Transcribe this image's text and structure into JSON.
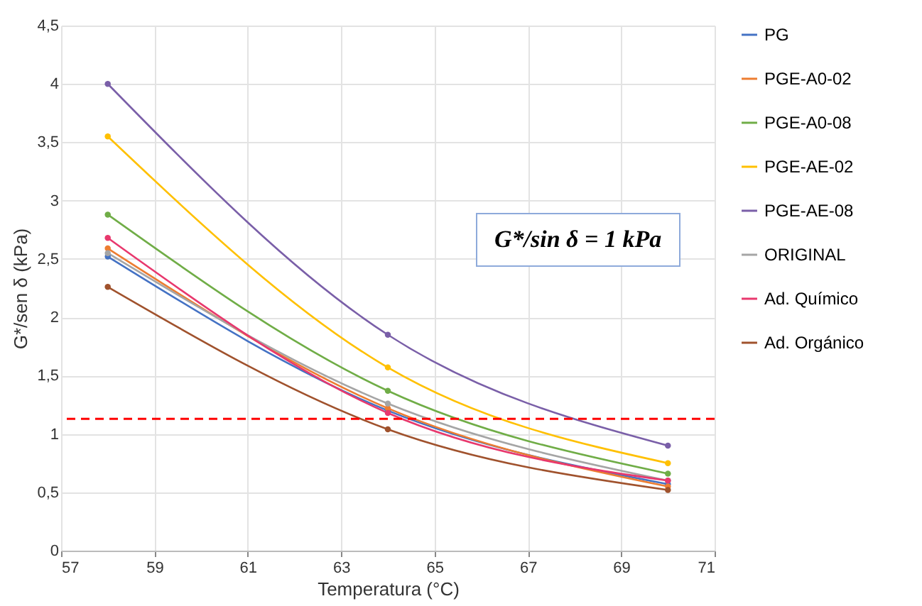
{
  "chart_data": {
    "type": "line",
    "xlabel": "Temperatura (°C)",
    "ylabel": "G*/sen δ (kPa)",
    "x": [
      58,
      64,
      70
    ],
    "series": [
      {
        "name": "PG",
        "color": "#4472c4",
        "values": [
          2.52,
          1.2,
          0.57
        ]
      },
      {
        "name": "PGE-A0-02",
        "color": "#ed7d31",
        "values": [
          2.59,
          1.22,
          0.55
        ]
      },
      {
        "name": "PGE-A0-08",
        "color": "#70ad47",
        "values": [
          2.88,
          1.37,
          0.66
        ]
      },
      {
        "name": "PGE-AE-02",
        "color": "#ffc000",
        "values": [
          3.55,
          1.57,
          0.75
        ]
      },
      {
        "name": "PGE-AE-08",
        "color": "#7a5fa8",
        "values": [
          4.0,
          1.85,
          0.9
        ]
      },
      {
        "name": "ORIGINAL",
        "color": "#a5a5a5",
        "values": [
          2.55,
          1.26,
          0.6
        ]
      },
      {
        "name": "Ad. Químico",
        "color": "#e8386d",
        "values": [
          2.68,
          1.18,
          0.6
        ]
      },
      {
        "name": "Ad. Orgánico",
        "color": "#a0522d",
        "values": [
          2.26,
          1.04,
          0.52
        ]
      }
    ],
    "xlim": [
      57,
      71
    ],
    "xticks": [
      57,
      59,
      61,
      63,
      65,
      67,
      69,
      71
    ],
    "ylim": [
      0,
      4.5
    ],
    "yticks": [
      0,
      {
        "value": 0.5,
        "label": "0,5"
      },
      1,
      {
        "value": 1.5,
        "label": "1,5"
      },
      2,
      {
        "value": 2.5,
        "label": "2,5"
      },
      3,
      {
        "value": 3.5,
        "label": "3,5"
      },
      4,
      {
        "value": 4.5,
        "label": "4,5"
      }
    ],
    "ref_lines": [
      {
        "axis": "y",
        "value": 1.13,
        "color": "#ff0000",
        "line_style": "dashed"
      }
    ],
    "annotations": [
      "G*/sin δ = 1 kPa"
    ],
    "grid": true,
    "legend": "right",
    "marker": "circle",
    "line_style": "solid"
  }
}
